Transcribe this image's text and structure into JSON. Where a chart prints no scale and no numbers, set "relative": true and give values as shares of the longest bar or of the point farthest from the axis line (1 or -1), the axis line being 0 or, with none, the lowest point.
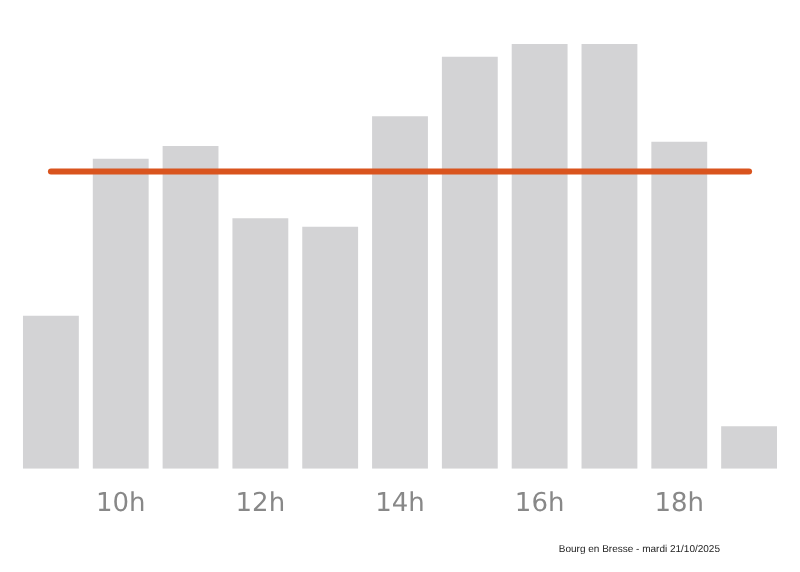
{
  "chart_data": {
    "type": "bar",
    "relative": true,
    "categories": [
      null,
      "10h",
      null,
      "12h",
      null,
      "14h",
      null,
      "16h",
      null,
      "18h",
      null
    ],
    "values": [
      0.36,
      0.73,
      0.76,
      0.59,
      0.57,
      0.83,
      0.97,
      1,
      1,
      0.77,
      0.1
    ],
    "color": "#d3d3d5",
    "ref_lines": [
      {
        "axis": "y",
        "value": 0.7,
        "color": "#d9541e"
      }
    ],
    "annotations": [
      "Bourg en Bresse - mardi 21/10/2025"
    ],
    "grid": false,
    "legend": false
  }
}
